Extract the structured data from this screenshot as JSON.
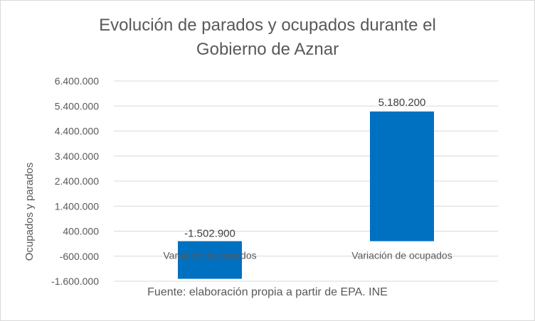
{
  "chart_data": {
    "type": "bar",
    "title_lines": [
      "Evolución de parados y ocupados durante el",
      "Gobierno de Aznar"
    ],
    "xlabel": "",
    "ylabel": "Ocupados y parados",
    "categories": [
      "Variación de parados",
      "Variación de ocupados"
    ],
    "values": [
      -1502900,
      5180200
    ],
    "data_labels": [
      "-1.502.900",
      "5.180.200"
    ],
    "y_ticks": [
      6400000,
      5400000,
      4400000,
      3400000,
      2400000,
      1400000,
      400000,
      -600000,
      -1600000
    ],
    "y_tick_labels": [
      "6.400.000",
      "5.400.000",
      "4.400.000",
      "3.400.000",
      "2.400.000",
      "1.400.000",
      "400.000",
      "-600.000",
      "-1.600.000"
    ],
    "ylim": [
      -1600000,
      6400000
    ],
    "grid": true,
    "bar_color": "#0070c0",
    "source_note": "Fuente: elaboración propia a partir de EPA. INE"
  }
}
